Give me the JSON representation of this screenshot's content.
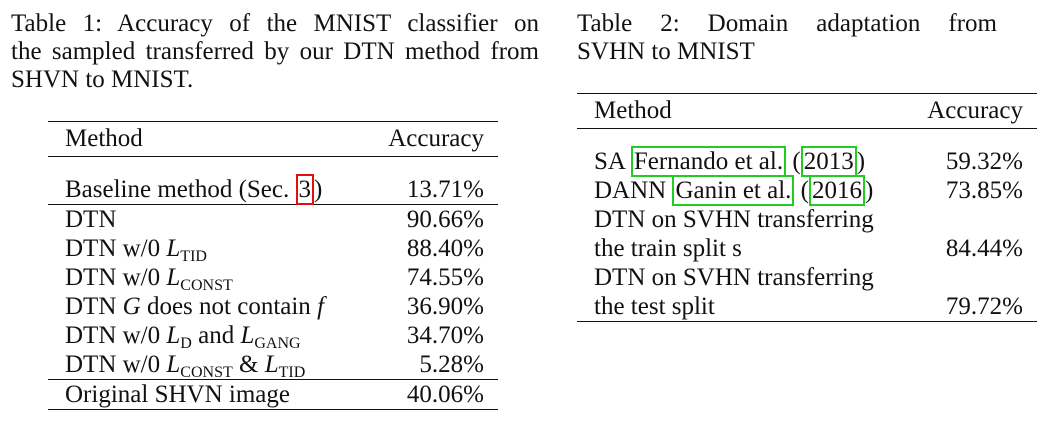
{
  "table1": {
    "caption_line1": "Table 1:  Accuracy of the MNIST classifier on",
    "caption_line2": "the sampled transferred by our DTN method from",
    "caption_line3": "SHVN to MNIST.",
    "header": {
      "method": "Method",
      "accuracy": "Accuracy"
    },
    "rows": [
      {
        "prefix": "Baseline method (Sec. ",
        "ref": "3",
        "suffix": ")",
        "accuracy": "13.71%"
      },
      {
        "method": "DTN",
        "accuracy": "90.66%"
      },
      {
        "prefix": "DTN w/0 ",
        "L": "L",
        "sub": "TID",
        "accuracy": "88.40%"
      },
      {
        "prefix": "DTN w/0 ",
        "L": "L",
        "sub": "CONST",
        "accuracy": "74.55%"
      },
      {
        "prefix": "DTN ",
        "G": "G",
        "middle": " does not contain ",
        "f": "f",
        "accuracy": "36.90%"
      },
      {
        "prefix": "DTN w/0 ",
        "L1": "L",
        "sub1": "D",
        "and": " and ",
        "L2": "L",
        "sub2": "GANG",
        "accuracy": "34.70%"
      },
      {
        "prefix": "DTN w/0 ",
        "L1": "L",
        "sub1": "CONST",
        "and": " & ",
        "L2": "L",
        "sub2": "TID",
        "accuracy": "5.28%"
      },
      {
        "method": "Original SHVN image",
        "accuracy": "40.06%"
      }
    ]
  },
  "table2": {
    "caption_line1": "Table 2:  Domain adaptation from",
    "caption_line2": "SVHN to MNIST",
    "header": {
      "method": "Method",
      "accuracy": "Accuracy"
    },
    "rows": [
      {
        "prefix": "SA ",
        "cite": "Fernando et al.",
        "mid": " (",
        "year": "2013",
        "suffix": ")",
        "accuracy": "59.32%"
      },
      {
        "prefix": "DANN ",
        "cite": "Ganin et al.",
        "mid": " (",
        "year": "2016",
        "suffix": ")",
        "accuracy": "73.85%"
      },
      {
        "line1": "DTN on SVHN transferring",
        "line2": "the train split s",
        "accuracy": "84.44%"
      },
      {
        "line1": "DTN on SVHN transferring",
        "line2": "the test split",
        "accuracy": "79.72%"
      }
    ]
  }
}
